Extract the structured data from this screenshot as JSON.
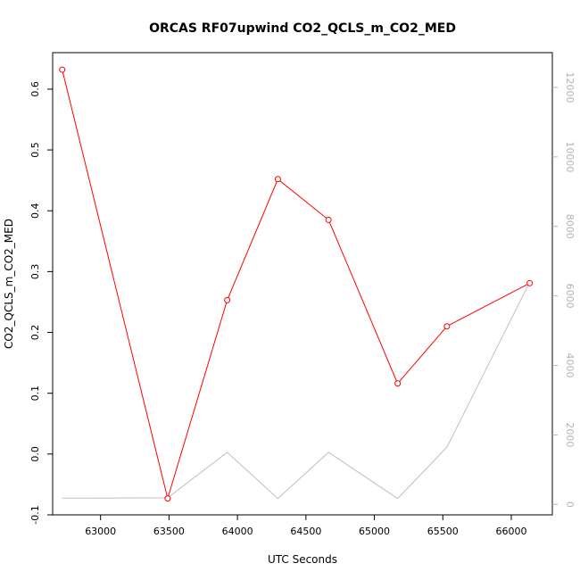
{
  "chart_data": {
    "type": "line",
    "title": "ORCAS RF07upwind CO2_QCLS_m_CO2_MED",
    "xlabel": "UTC Seconds",
    "ylabel": "CO2_QCLS_m_CO2_MED",
    "xlim": [
      62650,
      66300
    ],
    "ylim": [
      -0.1,
      0.66
    ],
    "ylim_right": [
      -300,
      13000
    ],
    "x_ticks": [
      63000,
      63500,
      64000,
      64500,
      65000,
      65500,
      66000
    ],
    "x_tick_labels": [
      "63000",
      "63500",
      "64000",
      "64500",
      "65000",
      "65500",
      "66000"
    ],
    "y_ticks": [
      -0.1,
      0.0,
      0.1,
      0.2,
      0.3,
      0.4,
      0.5,
      0.6
    ],
    "y_tick_labels": [
      "-0.1",
      "0.0",
      "0.1",
      "0.2",
      "0.3",
      "0.4",
      "0.5",
      "0.6"
    ],
    "y_right_ticks": [
      0,
      2000,
      4000,
      6000,
      8000,
      10000,
      12000
    ],
    "y_right_tick_labels": [
      "0",
      "2000",
      "4000",
      "6000",
      "8000",
      "10000",
      "12000"
    ],
    "series": [
      {
        "axis": "left",
        "color": "#ff0000",
        "markers": "open-circle",
        "x": [
          62720,
          63490,
          63925,
          64295,
          64665,
          65170,
          65530,
          66135
        ],
        "y": [
          0.632,
          -0.073,
          0.253,
          0.452,
          0.385,
          0.116,
          0.21,
          0.281
        ]
      },
      {
        "axis": "right",
        "color": "#bebebe",
        "markers": "none",
        "x": [
          62720,
          63490,
          63925,
          64295,
          64665,
          65170,
          65530,
          66135
        ],
        "y": [
          180,
          190,
          1500,
          170,
          1500,
          170,
          1650,
          6400
        ]
      }
    ]
  }
}
